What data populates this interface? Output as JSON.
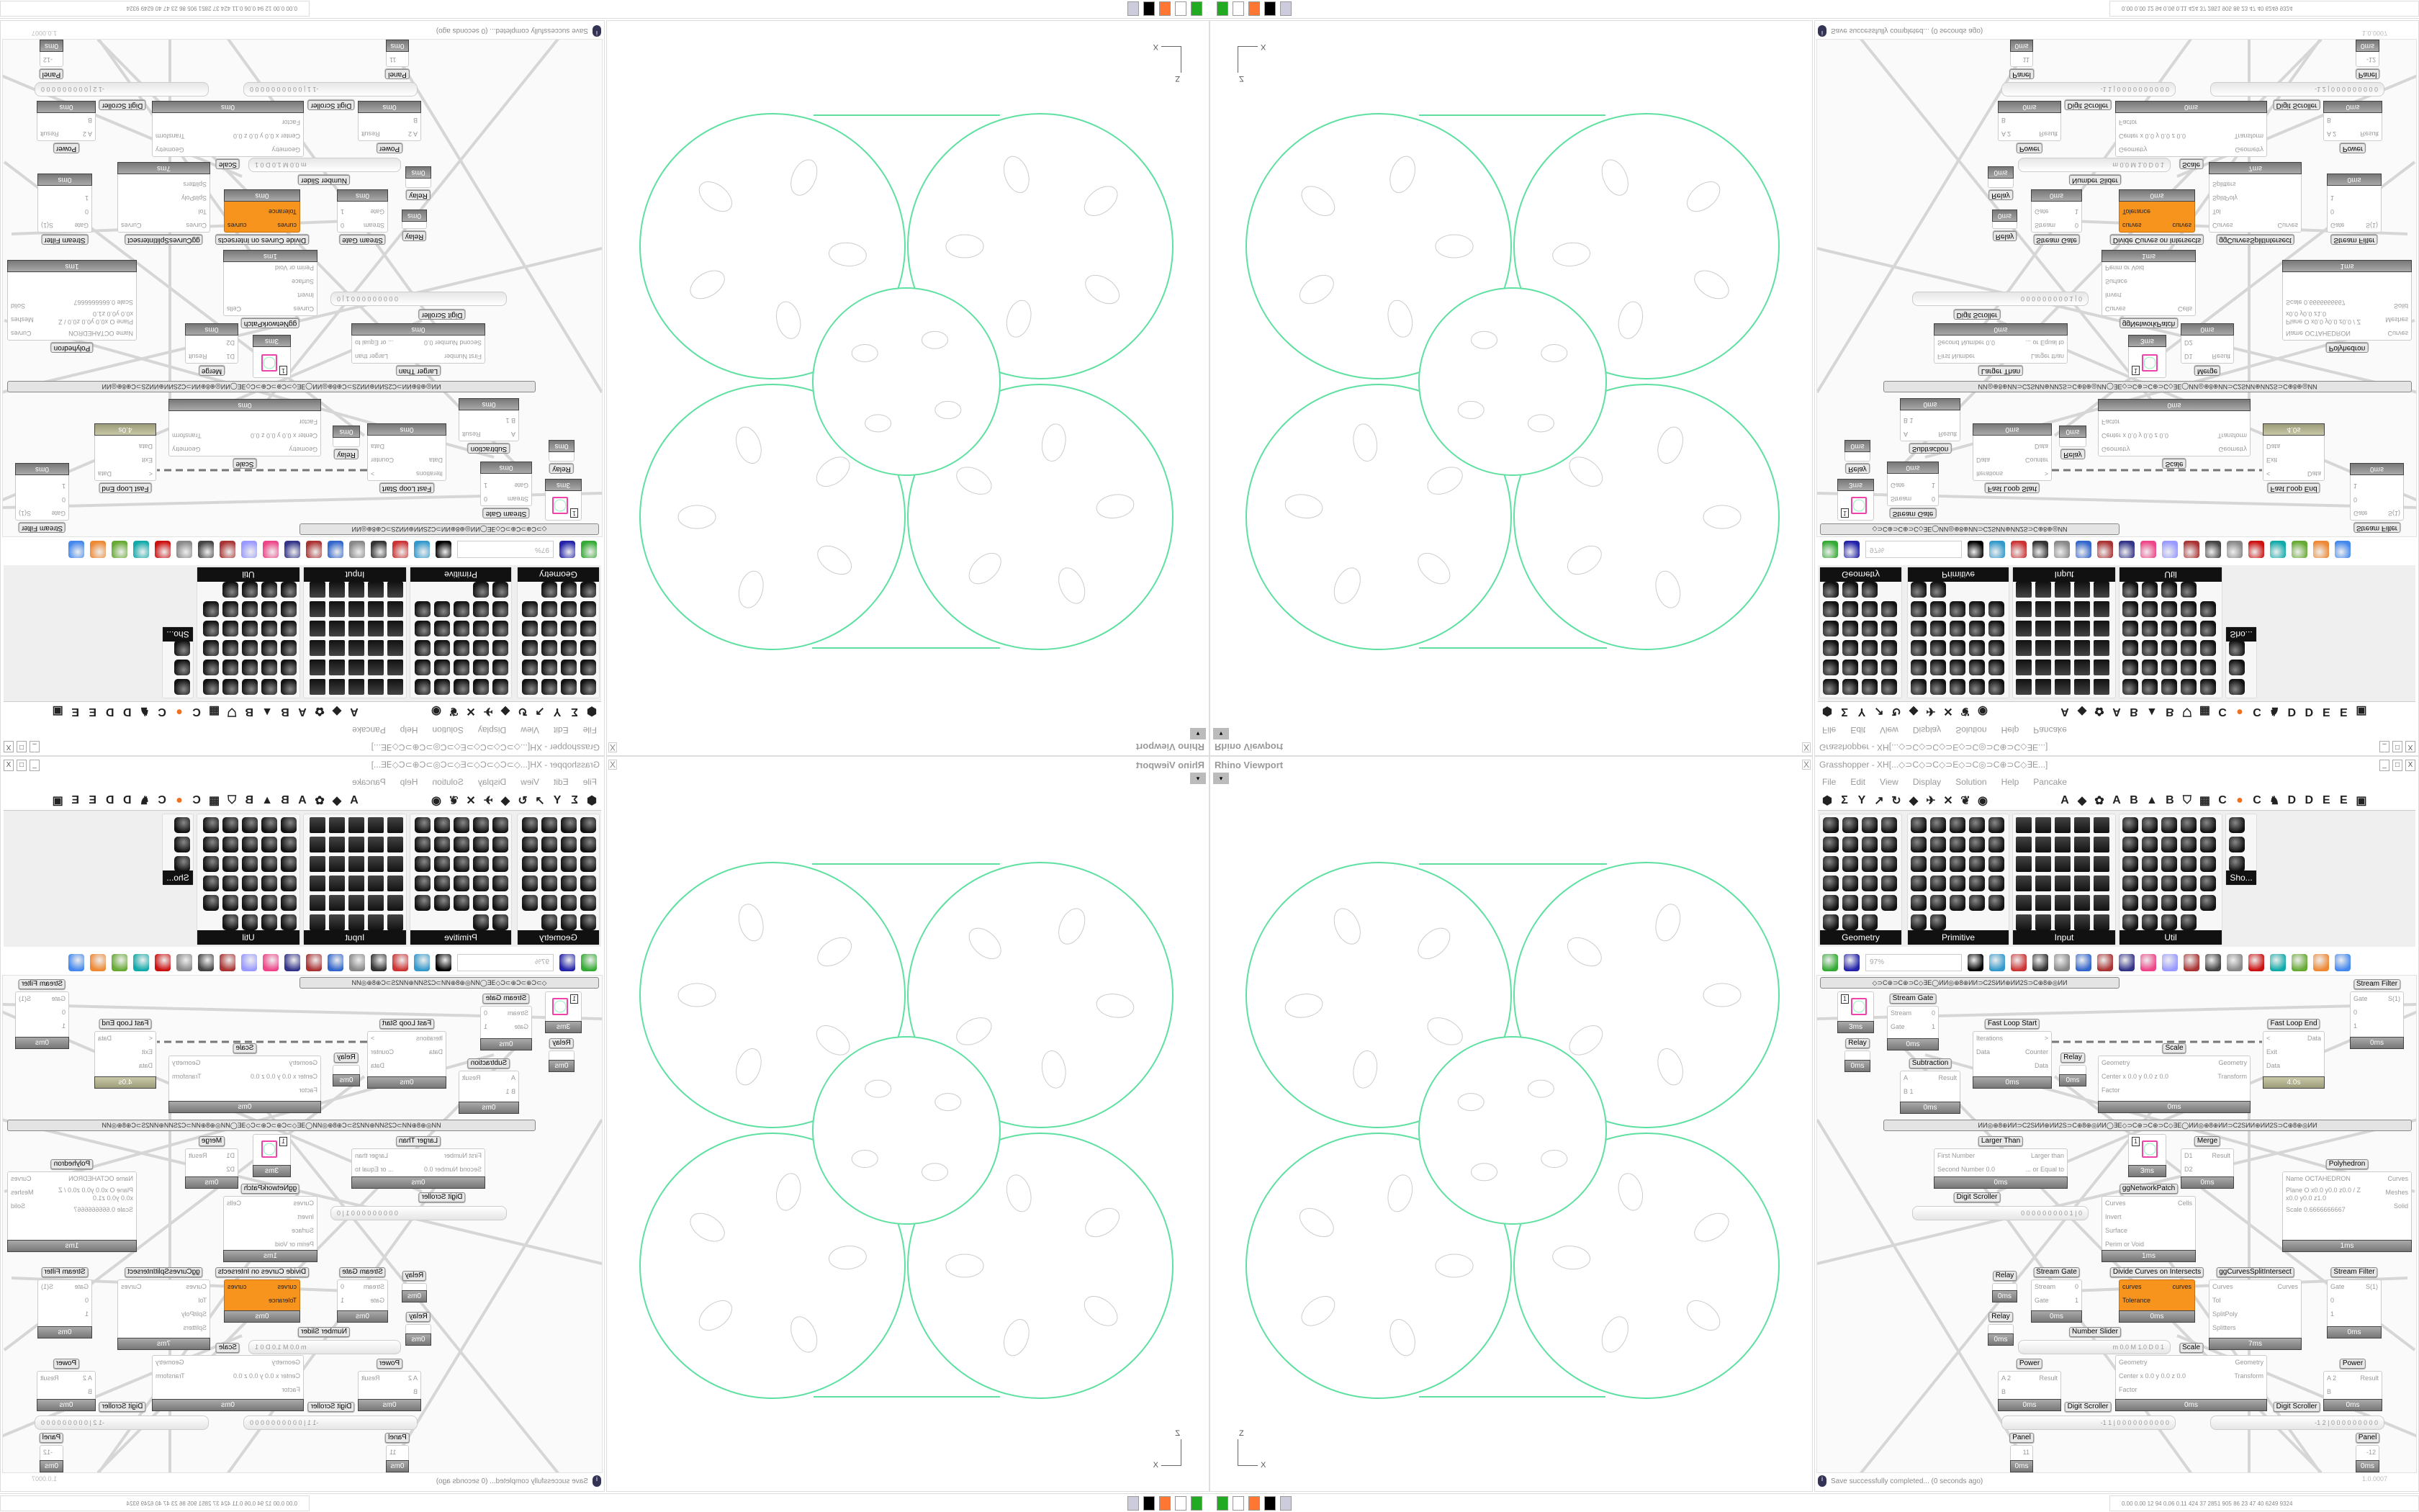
{
  "viewport": {
    "title": "Rhino Viewport",
    "close": "X",
    "dropdown": "▾",
    "axis_z": "Z",
    "axis_x": "X",
    "curve_color": "#5ee0a0",
    "detail_color": "#cccccc"
  },
  "grasshopper": {
    "title": "Grasshopper - XH[...◇⊃C◇⊃C◇⊃E◇⊃C◎⊃C⊕⊃C◇∃E...]",
    "window_buttons": [
      "_",
      "□",
      "X"
    ],
    "menu": [
      "File",
      "Edit",
      "View",
      "Display",
      "Solution",
      "Help",
      "Pancake"
    ],
    "tabs": [
      "⬢",
      "Σ",
      "Y",
      "↗",
      "↻",
      "◆",
      "✈",
      "✕",
      "❦",
      "◉",
      "A",
      "◆",
      "✿",
      "A",
      "B",
      "▲",
      "B",
      "⛉",
      "▦",
      "C",
      "●",
      "C",
      "♞",
      "D",
      "D",
      "E",
      "E",
      "▣"
    ],
    "panels": [
      {
        "title": "Geometry",
        "icons": 23
      },
      {
        "title": "Primitive",
        "icons": 27
      },
      {
        "title": "Input",
        "icons": 30
      },
      {
        "title": "Util",
        "icons": 29
      },
      {
        "title": "Sho...",
        "icons": 3
      }
    ],
    "toolbar": {
      "zoom": "97%",
      "icons": [
        "open-icon",
        "save-icon",
        "fit-icon",
        "preview-icon",
        "sketch-icon",
        "bake-icon",
        "email-icon",
        "gha-icon",
        "image-icon",
        "search-icon",
        "package-icon",
        "bulb-icon",
        "wires-icon",
        "sphere-icon",
        "ring-icon",
        "gem-icon",
        "shape-icon",
        "leaf-icon",
        "half-sphere-icon",
        "blue-sphere-icon"
      ]
    },
    "group_bar_top": "◇⊃C⊕⊃C⊕⊃C◇∃E◯ИИ◎⊕8⊕ИИ⊃C2SИИ⊕ИИ2S⊃C⊕8⊕◎ИИ",
    "group_bar_mid": "ИИ◎⊕8⊕ИИ⊃C2SИИ⊕ИИ2S⊃C⊕8⊕◎ИИ◯∃E◇⊃C⊕⊃C⊕⊃C◇∃E◯ИИ◎⊕8⊕ИИ⊃C2SИИ⊕ИИ2S⊃C⊕8⊕◎ИИ",
    "nodes": [
      {
        "label": "",
        "ins": [],
        "outs": [],
        "foot": "3ms",
        "preview": "1"
      },
      {
        "label": "Relay",
        "ins": [],
        "outs": [],
        "foot": "0ms"
      },
      {
        "label": "Stream Gate",
        "ins": [
          "Stream",
          "Gate"
        ],
        "outs": [
          "0",
          "1"
        ],
        "foot": "0ms"
      },
      {
        "label": "Fast Loop Start",
        "ins": [
          "Iterations",
          "Data"
        ],
        "outs": [
          ">",
          "Counter",
          "Data"
        ],
        "foot": "0ms"
      },
      {
        "label": "Relay",
        "ins": [],
        "outs": [],
        "foot": "0ms"
      },
      {
        "label": "Scale",
        "ins": [
          "Geometry",
          "Center x 0.0 y 0.0 z 0.0",
          "Factor"
        ],
        "outs": [
          "Geometry",
          "Transform"
        ],
        "foot": "0ms"
      },
      {
        "label": "Fast Loop End",
        "ins": [
          "<",
          "Exit",
          "Data"
        ],
        "outs": [
          "Data"
        ],
        "foot": "4.0s",
        "olive": true
      },
      {
        "label": "Stream Filter",
        "ins": [
          "Gate",
          "0",
          "1"
        ],
        "outs": [
          "S(1)"
        ],
        "foot": "0ms"
      },
      {
        "label": "Subtraction",
        "ins": [
          "A",
          "B 1"
        ],
        "outs": [
          "Result"
        ],
        "foot": "0ms"
      },
      {
        "label": "Larger Than",
        "ins": [
          "First Number",
          "Second Number 0.0"
        ],
        "outs": [
          "Larger than",
          "... or Equal to"
        ],
        "foot": "0ms"
      },
      {
        "label": "",
        "ins": [],
        "outs": [],
        "foot": "3ms",
        "preview": "1"
      },
      {
        "label": "Merge",
        "ins": [
          "D1",
          "D2"
        ],
        "outs": [
          "Result"
        ],
        "foot": "0ms"
      },
      {
        "label": "ggNetworkPatch",
        "ins": [
          "Curves",
          "Invert",
          "Surface",
          "Perim or Void"
        ],
        "outs": [
          "Cells"
        ],
        "foot": "1ms"
      },
      {
        "label": "Polyhedron",
        "ins": [
          "Name OCTAHEDRON",
          "Plane O x0.0 y0.0 z0.0 / Z x0.0 y0.0 z1.0",
          "Scale 0.6666666667"
        ],
        "outs": [
          "Curves",
          "Meshes",
          "Solid"
        ],
        "foot": "1ms"
      },
      {
        "label": "Relay",
        "ins": [],
        "outs": [],
        "foot": "0ms"
      },
      {
        "label": "Stream Gate",
        "ins": [
          "Stream",
          "Gate"
        ],
        "outs": [
          "0",
          "1"
        ],
        "foot": "0ms"
      },
      {
        "label": "Divide Curves on Intersects",
        "ins": [
          "curves",
          "Tolerance"
        ],
        "outs": [
          "curves"
        ],
        "foot": "0ms",
        "orange": true
      },
      {
        "label": "ggCurvesSplitIntersect",
        "ins": [
          "Curves",
          "Tol",
          "SplitPoly",
          "Splitters"
        ],
        "outs": [
          "Curves"
        ],
        "foot": "7ms"
      },
      {
        "label": "Stream Filter",
        "ins": [
          "Gate",
          "0",
          "1"
        ],
        "outs": [
          "S(1)"
        ],
        "foot": "0ms"
      },
      {
        "label": "Relay",
        "ins": [],
        "outs": [],
        "foot": "0ms"
      },
      {
        "label": "Power",
        "ins": [
          "A 2",
          "B"
        ],
        "outs": [
          "Result"
        ],
        "foot": "0ms"
      },
      {
        "label": "Scale",
        "ins": [
          "Geometry",
          "Center x 0.0 y 0.0 z 0.0",
          "Factor"
        ],
        "outs": [
          "Geometry",
          "Transform"
        ],
        "foot": "0ms"
      },
      {
        "label": "Power",
        "ins": [
          "A 2",
          "B"
        ],
        "outs": [
          "Result"
        ],
        "foot": "0ms"
      },
      {
        "label": "Panel",
        "ins": [],
        "outs": [
          "11"
        ],
        "foot": "0ms"
      },
      {
        "label": "Panel",
        "ins": [],
        "outs": [
          "-12"
        ],
        "foot": "0ms"
      }
    ],
    "sliders": [
      {
        "label": "Digit Scroller",
        "value": "0 0 0 0 0 0 0 0 0 1 | 0"
      },
      {
        "label": "Number Slider",
        "value": "m 0.0  M 1.0  D 0        1"
      },
      {
        "label": "Digit Scroller",
        "value": "-1 1 | 0 0 0 0 0 0 0 0 0 0"
      },
      {
        "label": "Digit Scroller",
        "value": "-1 2 | 0 0 0 0 0 0 0 0 0"
      }
    ],
    "status": {
      "message": "Save successfully completed... (0 seconds ago)",
      "version": "1.0.0007"
    }
  },
  "taskbar": {
    "tray_text": "0.00 0.00  12  94  0.06 0.11  424  37  2851 905  86  23  47  40  6249 9324",
    "apps": [
      "app-green-icon",
      "app-disk-icon",
      "firefox-icon",
      "app-bw-icon",
      "calculator-icon"
    ]
  }
}
